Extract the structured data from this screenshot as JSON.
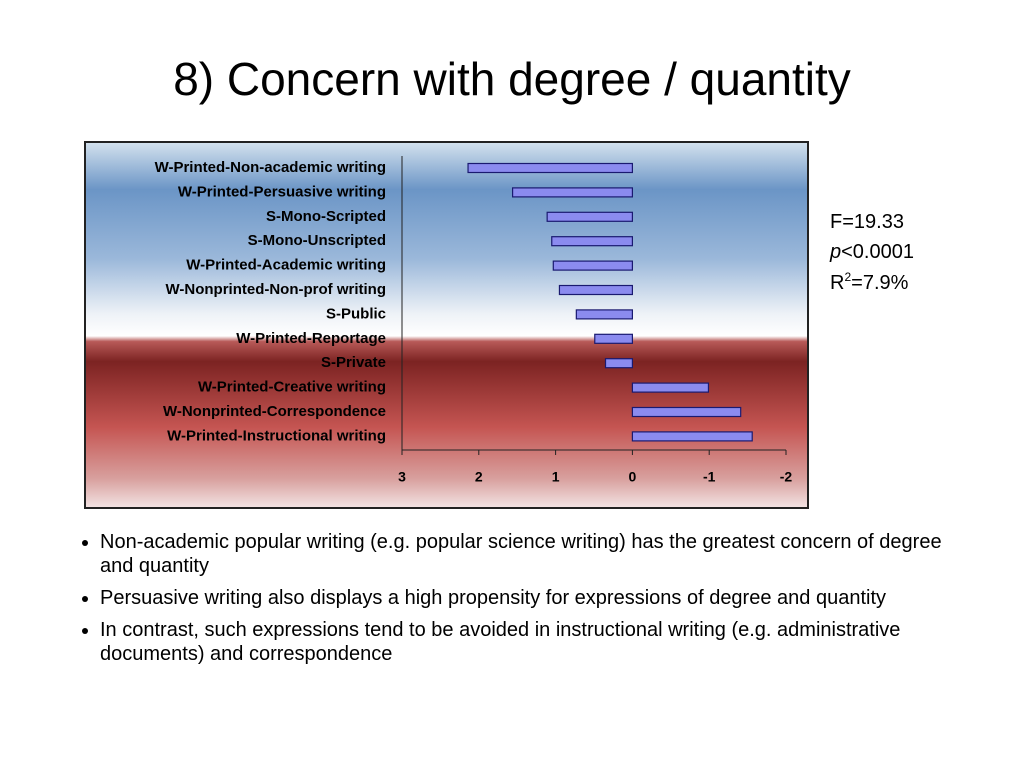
{
  "title": "8) Concern with degree / quantity",
  "chart_data": {
    "type": "bar",
    "orientation": "horizontal",
    "categories": [
      "W-Printed-Non-academic writing",
      "W-Printed-Persuasive writing",
      "S-Mono-Scripted",
      "S-Mono-Unscripted",
      "W-Printed-Academic writing",
      "W-Nonprinted-Non-prof writing",
      "S-Public",
      "W-Printed-Reportage",
      "S-Private",
      "W-Printed-Creative writing",
      "W-Nonprinted-Correspondence",
      "W-Printed-Instructional writing"
    ],
    "values": [
      2.14,
      1.56,
      1.11,
      1.05,
      1.03,
      0.95,
      0.73,
      0.49,
      0.35,
      -0.99,
      -1.41,
      -1.56
    ],
    "color": "#8b8bef",
    "xlim": [
      3,
      -2
    ],
    "xticks": [
      3,
      2,
      1,
      0,
      -1,
      -2
    ],
    "annotations": [
      [
        "F=19.33"
      ],
      [
        "p",
        "<0.0001"
      ],
      [
        "R",
        "2",
        "=7.9%"
      ]
    ]
  },
  "bullets": [
    "Non-academic popular writing (e.g. popular science writing) has the greatest concern of degree and quantity",
    "Persuasive writing also displays a high propensity for expressions of degree and quantity",
    "In contrast, such expressions tend to be avoided in instructional writing (e.g. administrative documents) and correspondence"
  ]
}
